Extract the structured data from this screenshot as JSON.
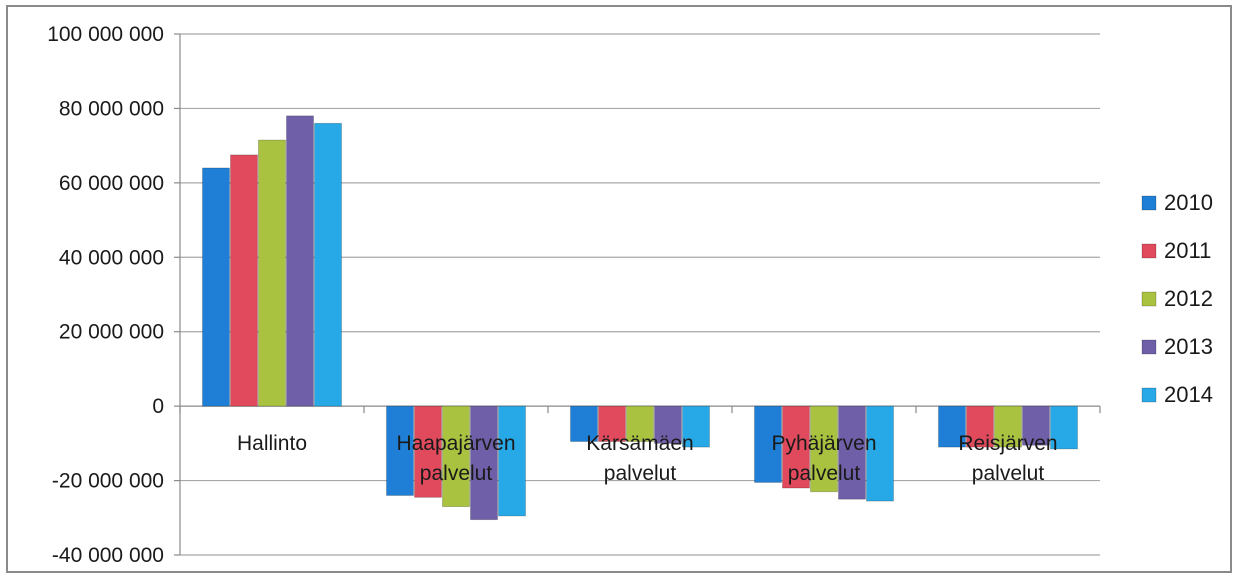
{
  "chart_data": {
    "type": "bar",
    "categories": [
      [
        "Hallinto"
      ],
      [
        "Haapajärven",
        "palvelut"
      ],
      [
        "Kärsämäen",
        "palvelut"
      ],
      [
        "Pyhäjärven",
        "palvelut"
      ],
      [
        "Reisjärven",
        "palvelut"
      ]
    ],
    "series": [
      {
        "name": "2010",
        "color": "#1f7fd6",
        "values": [
          64000000,
          -24000000,
          -9500000,
          -20500000,
          -11000000
        ]
      },
      {
        "name": "2011",
        "color": "#e04a5c",
        "values": [
          67500000,
          -24500000,
          -9500000,
          -22000000,
          -11000000
        ]
      },
      {
        "name": "2012",
        "color": "#a9c23f",
        "values": [
          71500000,
          -27000000,
          -9500000,
          -23000000,
          -11000000
        ]
      },
      {
        "name": "2013",
        "color": "#6f5fa8",
        "values": [
          78000000,
          -30500000,
          -10000000,
          -25000000,
          -10500000
        ]
      },
      {
        "name": "2014",
        "color": "#26a9e6",
        "values": [
          76000000,
          -29500000,
          -11000000,
          -25500000,
          -11500000
        ]
      }
    ],
    "yticks": [
      {
        "value": 100000000,
        "label": "100 000 000"
      },
      {
        "value": 80000000,
        "label": "80 000 000"
      },
      {
        "value": 60000000,
        "label": "60 000 000"
      },
      {
        "value": 40000000,
        "label": "40 000 000"
      },
      {
        "value": 20000000,
        "label": "20 000 000"
      },
      {
        "value": 0,
        "label": "0"
      },
      {
        "value": -20000000,
        "label": "-20 000 000"
      },
      {
        "value": -40000000,
        "label": "-40 000 000"
      }
    ],
    "ylim": [
      -40000000,
      100000000
    ],
    "grid": true,
    "legend_position": "right",
    "title": "",
    "xlabel": "",
    "ylabel": ""
  }
}
